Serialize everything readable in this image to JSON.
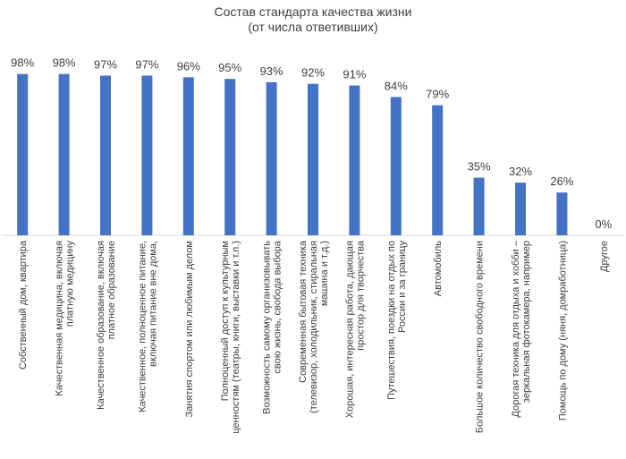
{
  "chart_data": {
    "type": "bar",
    "title": "Состав стандарта качества жизни",
    "subtitle": "(от числа ответивших)",
    "xlabel": "",
    "ylabel": "",
    "ylim": [
      0,
      100
    ],
    "value_suffix": "%",
    "grid": false,
    "legend": "none",
    "bar_color": "#4472C4",
    "categories": [
      [
        "Собственный дом, квартира"
      ],
      [
        "Качественная медицина, включая",
        "платную медицину"
      ],
      [
        "Качественное образование, включая",
        "платное образование"
      ],
      [
        "Качественное, полноценное питание,",
        "включая питание вне дома,"
      ],
      [
        "Занятия спортом или любимым делом"
      ],
      [
        "Полноценный доступ к культурным",
        "ценностям (театры, книги, выставки и т.п.)"
      ],
      [
        "Возможность самому организовывать",
        "свою жизнь, свобода выбора"
      ],
      [
        "Современная бытовая техника",
        "(телевизор, холодильник, стиральная",
        "машина и т.д.)"
      ],
      [
        "Хорошая, интересная работа, дающая",
        "простор для творчества"
      ],
      [
        "Путешествия, поездки на отдых по",
        "России и за границу"
      ],
      [
        "Автомобиль"
      ],
      [
        "Большое количество свободного времени"
      ],
      [
        "Дорогая техника для отдыха и хобби –",
        "зеркальная фотокамера, например"
      ],
      [
        "Помощь по дому (няня, домработница)"
      ],
      [
        "Другое"
      ]
    ],
    "values": [
      98,
      98,
      97,
      97,
      96,
      95,
      93,
      92,
      91,
      84,
      79,
      35,
      32,
      26,
      0
    ]
  }
}
